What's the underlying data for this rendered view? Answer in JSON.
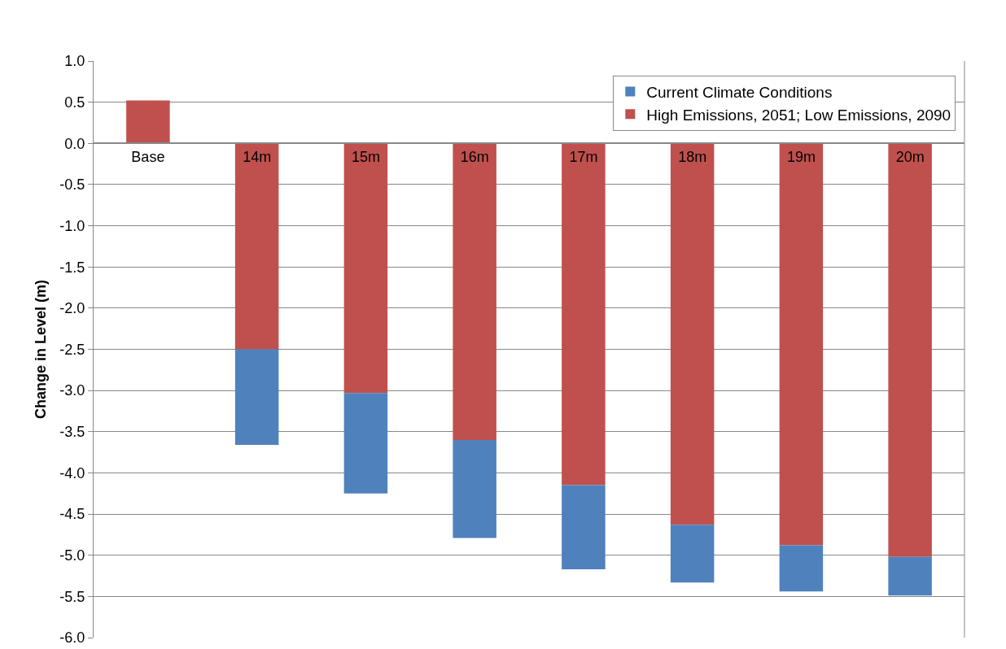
{
  "chart_data": {
    "type": "bar",
    "stacked": true,
    "ylabel": "Change in Level (m)",
    "categories": [
      "Base",
      "14m",
      "15m",
      "16m",
      "17m",
      "18m",
      "19m",
      "20m"
    ],
    "series": [
      {
        "name": "High Emissions, 2051; Low Emissions, 2090",
        "color": "#c0504d",
        "values": [
          0.52,
          -2.5,
          -3.03,
          -3.6,
          -4.15,
          -4.63,
          -4.88,
          -5.02
        ]
      },
      {
        "name": "Current Climate Conditions",
        "color": "#4f81bd",
        "values": [
          null,
          -1.16,
          -1.22,
          -1.19,
          -1.02,
          -0.7,
          -0.56,
          -0.47
        ]
      }
    ],
    "ylim": [
      -6,
      1
    ],
    "yticks": [
      {
        "value": -6,
        "label": "-6.0"
      },
      {
        "value": -5.5,
        "label": "-5.5"
      },
      {
        "value": -5,
        "label": "-5.0"
      },
      {
        "value": -4.5,
        "label": "-4.5"
      },
      {
        "value": -4,
        "label": "-4.0"
      },
      {
        "value": -3.5,
        "label": "-3.5"
      },
      {
        "value": -3,
        "label": "-3.0"
      },
      {
        "value": -2.5,
        "label": "-2.5"
      },
      {
        "value": -2,
        "label": "-2.0"
      },
      {
        "value": -1.5,
        "label": "-1.5"
      },
      {
        "value": -1,
        "label": "-1.0"
      },
      {
        "value": -0.5,
        "label": "-0.5"
      },
      {
        "value": 0,
        "label": "0.0"
      },
      {
        "value": 0.5,
        "label": "0.5"
      },
      {
        "value": 1,
        "label": "1.0"
      }
    ],
    "grid": "y",
    "legend": "top right"
  }
}
